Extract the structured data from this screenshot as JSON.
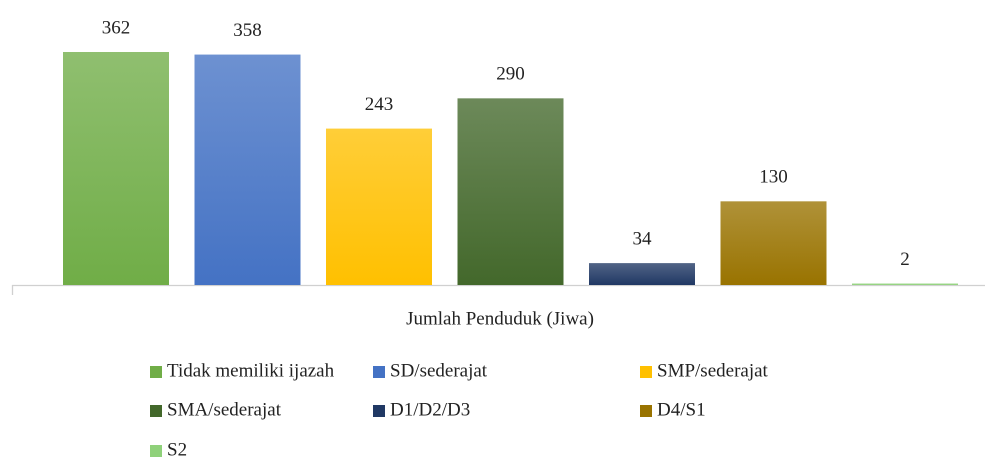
{
  "chart_data": {
    "type": "bar",
    "categories": [
      "Jumlah Penduduk (Jiwa)"
    ],
    "series": [
      {
        "name": "Tidak memiliki ijazah",
        "color": "#70ad47",
        "values": [
          362
        ]
      },
      {
        "name": "SD/sederajat",
        "color": "#4472c4",
        "values": [
          358
        ]
      },
      {
        "name": "SMP/sederajat",
        "color": "#ffc000",
        "values": [
          243
        ]
      },
      {
        "name": "SMA/sederajat",
        "color": "#43682b",
        "values": [
          290
        ]
      },
      {
        "name": "D1/D2/D3",
        "color": "#203864",
        "values": [
          34
        ]
      },
      {
        "name": "D4/S1",
        "color": "#997300",
        "values": [
          130
        ]
      },
      {
        "name": "S2",
        "color": "#8fd17a",
        "values": [
          2
        ]
      }
    ],
    "legend": "bottom"
  }
}
